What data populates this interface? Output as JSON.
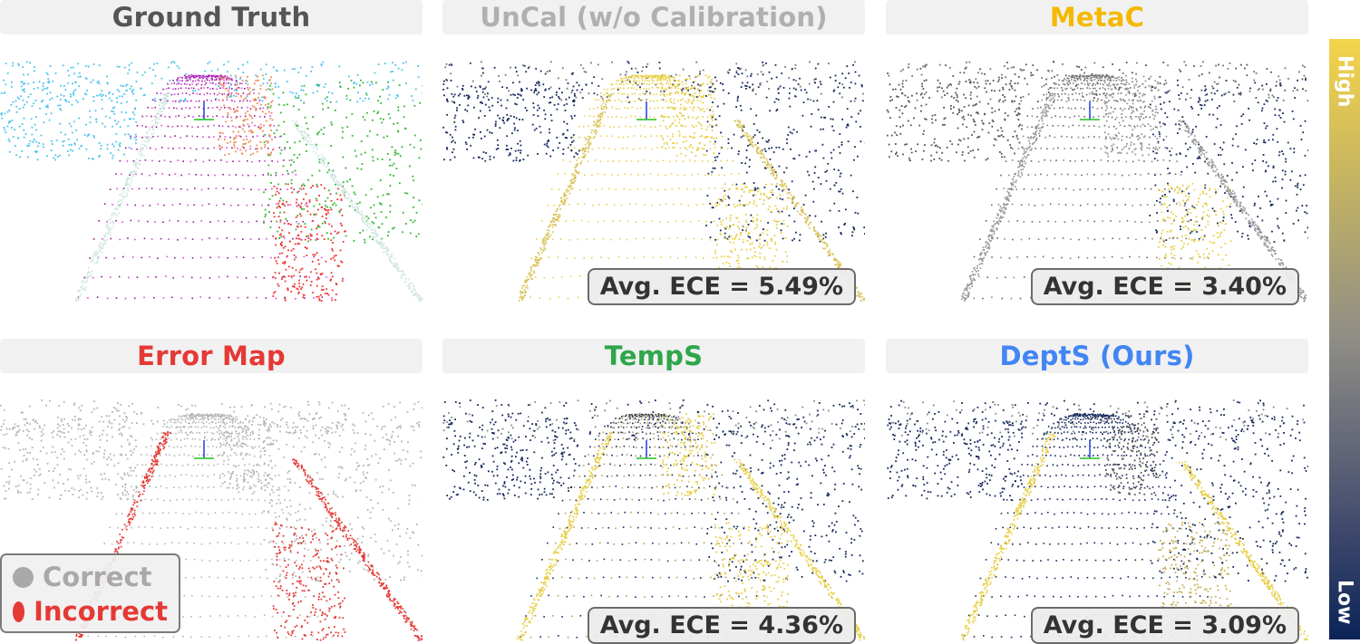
{
  "panels": [
    {
      "title": "Ground Truth",
      "title_color": "#555555",
      "ece": ""
    },
    {
      "title": "UnCal (w/o Calibration)",
      "title_color": "#b0b0b0",
      "ece": "Avg. ECE = 5.49%"
    },
    {
      "title": "MetaC",
      "title_color": "#f5b800",
      "ece": "Avg. ECE = 3.40%"
    },
    {
      "title": "Error Map",
      "title_color": "#e53935",
      "ece": ""
    },
    {
      "title": "TempS",
      "title_color": "#2ea64a",
      "ece": "Avg. ECE = 4.36%"
    },
    {
      "title": "DeptS (Ours)",
      "title_color": "#4285f4",
      "ece": "Avg. ECE = 3.09%"
    }
  ],
  "legend": {
    "correct_label": "Correct",
    "correct_color": "#a9a9a9",
    "incorrect_label": "Incorrect",
    "incorrect_color": "#e53935"
  },
  "colorbar": {
    "high_label": "High",
    "low_label": "Low",
    "high_color": "#f4d44a",
    "low_color": "#0b2358"
  }
}
